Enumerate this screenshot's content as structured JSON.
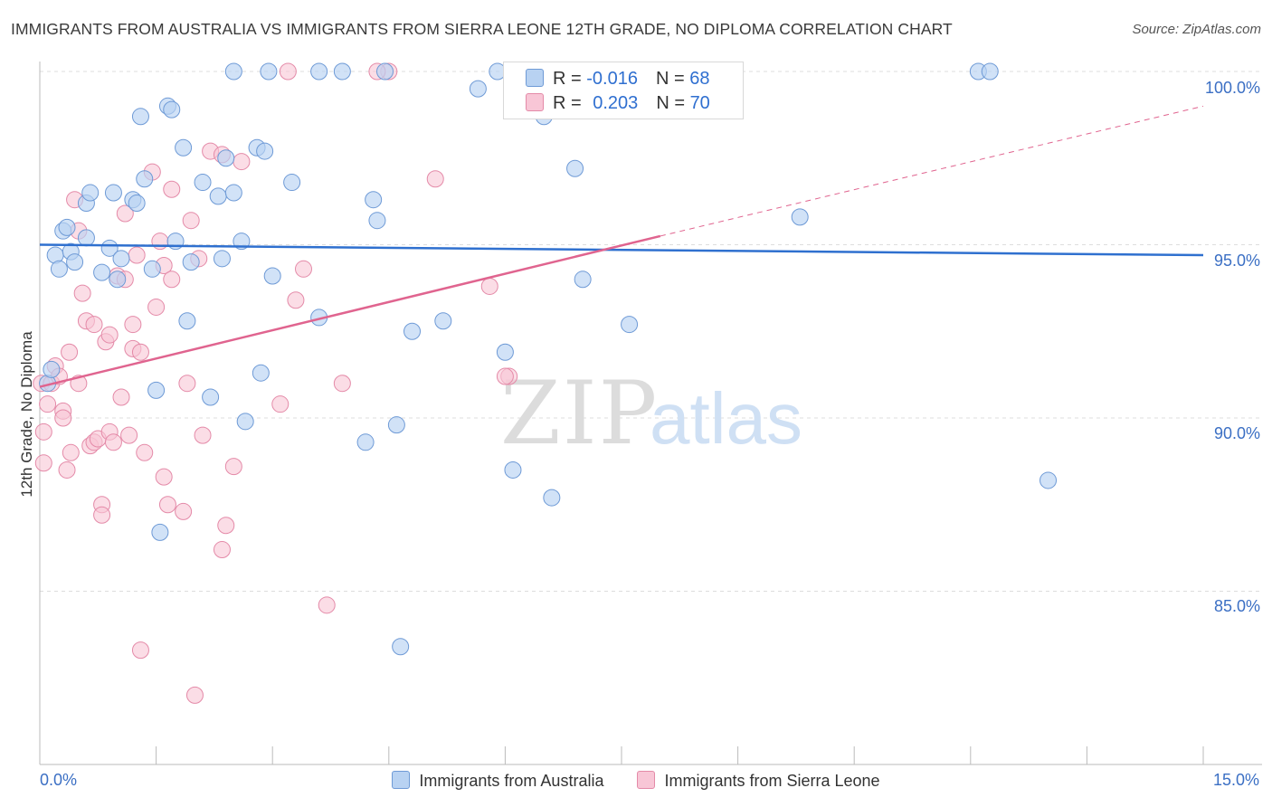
{
  "header": {
    "title": "IMMIGRANTS FROM AUSTRALIA VS IMMIGRANTS FROM SIERRA LEONE 12TH GRADE, NO DIPLOMA CORRELATION CHART",
    "source": "Source: ZipAtlas.com"
  },
  "watermark": {
    "zip": "ZIP",
    "atlas": "atlas"
  },
  "legend_stats": {
    "rows": [
      {
        "r_label": "R = ",
        "r_value": "-0.016",
        "n_label": "N = ",
        "n_value": "68"
      },
      {
        "r_label": "R = ",
        "r_value": "0.203",
        "n_label": "N = ",
        "n_value": "70"
      }
    ]
  },
  "colors": {
    "australia_fill": "#b8d2f2",
    "australia_stroke": "#6e9ad6",
    "australia_line": "#2f70cf",
    "sierra_fill": "#f8c6d6",
    "sierra_stroke": "#e48aa8",
    "sierra_line": "#e0648f",
    "grid": "#dddddd",
    "tick_label": "#3b6fc4"
  },
  "chart_data": {
    "type": "scatter",
    "title": "IMMIGRANTS FROM AUSTRALIA VS IMMIGRANTS FROM SIERRA LEONE 12TH GRADE, NO DIPLOMA CORRELATION CHART",
    "xlabel": "",
    "ylabel": "12th Grade, No Diploma",
    "xlim": [
      0,
      15
    ],
    "ylim": [
      80.2,
      100.5
    ],
    "x_tick_labels": [
      "0.0%",
      "15.0%"
    ],
    "y_ticks": [
      85,
      90,
      95,
      100
    ],
    "y_tick_labels": [
      "85.0%",
      "90.0%",
      "95.0%",
      "100.0%"
    ],
    "grid": true,
    "legend_position": "bottom",
    "series": [
      {
        "name": "Immigrants from Australia",
        "points": [
          [
            0.1,
            91.0
          ],
          [
            0.15,
            91.4
          ],
          [
            0.2,
            94.7
          ],
          [
            0.25,
            94.3
          ],
          [
            0.3,
            95.4
          ],
          [
            0.35,
            95.5
          ],
          [
            0.4,
            94.8
          ],
          [
            0.45,
            94.5
          ],
          [
            0.6,
            95.2
          ],
          [
            0.6,
            96.2
          ],
          [
            0.65,
            96.5
          ],
          [
            0.8,
            94.2
          ],
          [
            0.9,
            94.9
          ],
          [
            0.95,
            96.5
          ],
          [
            1.0,
            94.0
          ],
          [
            1.05,
            94.6
          ],
          [
            1.2,
            96.3
          ],
          [
            1.25,
            96.2
          ],
          [
            1.3,
            98.7
          ],
          [
            1.35,
            96.9
          ],
          [
            1.45,
            94.3
          ],
          [
            1.5,
            90.8
          ],
          [
            1.55,
            86.7
          ],
          [
            1.65,
            99.0
          ],
          [
            1.7,
            98.9
          ],
          [
            1.75,
            95.1
          ],
          [
            1.85,
            97.8
          ],
          [
            1.9,
            92.8
          ],
          [
            1.95,
            94.5
          ],
          [
            2.1,
            96.8
          ],
          [
            2.2,
            90.6
          ],
          [
            2.3,
            96.4
          ],
          [
            2.35,
            94.6
          ],
          [
            2.4,
            97.5
          ],
          [
            2.5,
            96.5
          ],
          [
            2.5,
            100.0
          ],
          [
            2.6,
            95.1
          ],
          [
            2.65,
            89.9
          ],
          [
            2.8,
            97.8
          ],
          [
            2.85,
            91.3
          ],
          [
            2.9,
            97.7
          ],
          [
            2.95,
            100.0
          ],
          [
            3.0,
            94.1
          ],
          [
            3.25,
            96.8
          ],
          [
            3.6,
            92.9
          ],
          [
            3.6,
            100.0
          ],
          [
            3.9,
            100.0
          ],
          [
            4.2,
            89.3
          ],
          [
            4.3,
            96.3
          ],
          [
            4.35,
            95.7
          ],
          [
            4.45,
            100.0
          ],
          [
            4.6,
            89.8
          ],
          [
            4.65,
            83.4
          ],
          [
            4.8,
            92.5
          ],
          [
            5.2,
            92.8
          ],
          [
            5.65,
            99.5
          ],
          [
            5.9,
            100.0
          ],
          [
            6.0,
            91.9
          ],
          [
            6.1,
            88.5
          ],
          [
            6.5,
            98.7
          ],
          [
            6.6,
            87.7
          ],
          [
            6.9,
            97.2
          ],
          [
            7.0,
            94.0
          ],
          [
            7.6,
            92.7
          ],
          [
            9.8,
            95.8
          ],
          [
            12.1,
            100.0
          ],
          [
            12.25,
            100.0
          ],
          [
            13.0,
            88.2
          ]
        ]
      },
      {
        "name": "Immigrants from Sierra Leone",
        "points": [
          [
            0.02,
            91.0
          ],
          [
            0.05,
            89.6
          ],
          [
            0.05,
            88.7
          ],
          [
            0.1,
            90.4
          ],
          [
            0.15,
            91.0
          ],
          [
            0.2,
            91.5
          ],
          [
            0.25,
            91.2
          ],
          [
            0.3,
            90.2
          ],
          [
            0.3,
            90.0
          ],
          [
            0.35,
            88.5
          ],
          [
            0.38,
            91.9
          ],
          [
            0.4,
            89.0
          ],
          [
            0.45,
            96.3
          ],
          [
            0.5,
            95.4
          ],
          [
            0.5,
            91.0
          ],
          [
            0.55,
            93.6
          ],
          [
            0.6,
            92.8
          ],
          [
            0.7,
            92.7
          ],
          [
            0.65,
            89.2
          ],
          [
            0.7,
            89.3
          ],
          [
            0.75,
            89.4
          ],
          [
            0.8,
            87.5
          ],
          [
            0.8,
            87.2
          ],
          [
            0.85,
            92.2
          ],
          [
            0.9,
            89.6
          ],
          [
            0.95,
            89.3
          ],
          [
            0.9,
            92.4
          ],
          [
            1.0,
            94.1
          ],
          [
            1.05,
            90.6
          ],
          [
            1.1,
            94.0
          ],
          [
            1.1,
            95.9
          ],
          [
            1.15,
            89.5
          ],
          [
            1.2,
            92.7
          ],
          [
            1.25,
            94.7
          ],
          [
            1.2,
            92.0
          ],
          [
            1.3,
            91.9
          ],
          [
            1.3,
            83.3
          ],
          [
            1.35,
            89.0
          ],
          [
            1.45,
            97.1
          ],
          [
            1.5,
            93.2
          ],
          [
            1.55,
            95.1
          ],
          [
            1.6,
            88.3
          ],
          [
            1.6,
            94.4
          ],
          [
            1.65,
            87.5
          ],
          [
            1.7,
            94.0
          ],
          [
            1.7,
            96.6
          ],
          [
            1.85,
            87.3
          ],
          [
            1.9,
            91.0
          ],
          [
            1.95,
            95.7
          ],
          [
            2.0,
            82.0
          ],
          [
            2.05,
            94.6
          ],
          [
            2.1,
            89.5
          ],
          [
            2.2,
            97.7
          ],
          [
            2.35,
            97.6
          ],
          [
            2.35,
            86.2
          ],
          [
            2.4,
            86.9
          ],
          [
            2.5,
            88.6
          ],
          [
            2.6,
            97.4
          ],
          [
            3.1,
            90.4
          ],
          [
            3.3,
            93.4
          ],
          [
            3.2,
            100.0
          ],
          [
            3.4,
            94.3
          ],
          [
            3.7,
            84.6
          ],
          [
            3.9,
            91.0
          ],
          [
            4.5,
            100.0
          ],
          [
            4.35,
            100.0
          ],
          [
            5.1,
            96.9
          ],
          [
            5.8,
            93.8
          ],
          [
            6.05,
            91.2
          ],
          [
            6.0,
            91.2
          ]
        ]
      }
    ],
    "trend_lines": [
      {
        "series": "Immigrants from Australia",
        "x": [
          0,
          15
        ],
        "y": [
          95.0,
          94.7
        ],
        "style": "solid"
      },
      {
        "series": "Immigrants from Sierra Leone",
        "x": [
          0,
          8.0
        ],
        "y": [
          90.9,
          95.25
        ],
        "style": "solid"
      },
      {
        "series": "Immigrants from Sierra Leone",
        "x": [
          8.0,
          15
        ],
        "y": [
          95.25,
          99.0
        ],
        "style": "dashed"
      }
    ]
  }
}
